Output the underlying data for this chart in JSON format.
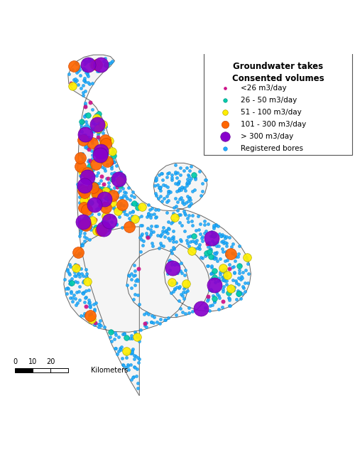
{
  "legend_title1": "Groundwater takes",
  "legend_title2": "Consented volumes",
  "legend_entries": [
    {
      "label": "<26 m3/day",
      "color": "#cc1188",
      "size": 14,
      "edgecolor": "#cc1188"
    },
    {
      "label": "26 - 50 m3/day",
      "color": "#00ccaa",
      "size": 28,
      "edgecolor": "#009988"
    },
    {
      "label": "51 - 100 m3/day",
      "color": "#ffee00",
      "size": 55,
      "edgecolor": "#bbaa00"
    },
    {
      "label": "101 - 300 m3/day",
      "color": "#ff6600",
      "size": 100,
      "edgecolor": "#cc4400"
    },
    {
      "label": "> 300 m3/day",
      "color": "#8800cc",
      "size": 170,
      "edgecolor": "#660099"
    },
    {
      "label": "Registered bores",
      "color": "#22aaff",
      "size": 28,
      "edgecolor": "#0088dd"
    }
  ],
  "background_color": "#ffffff"
}
